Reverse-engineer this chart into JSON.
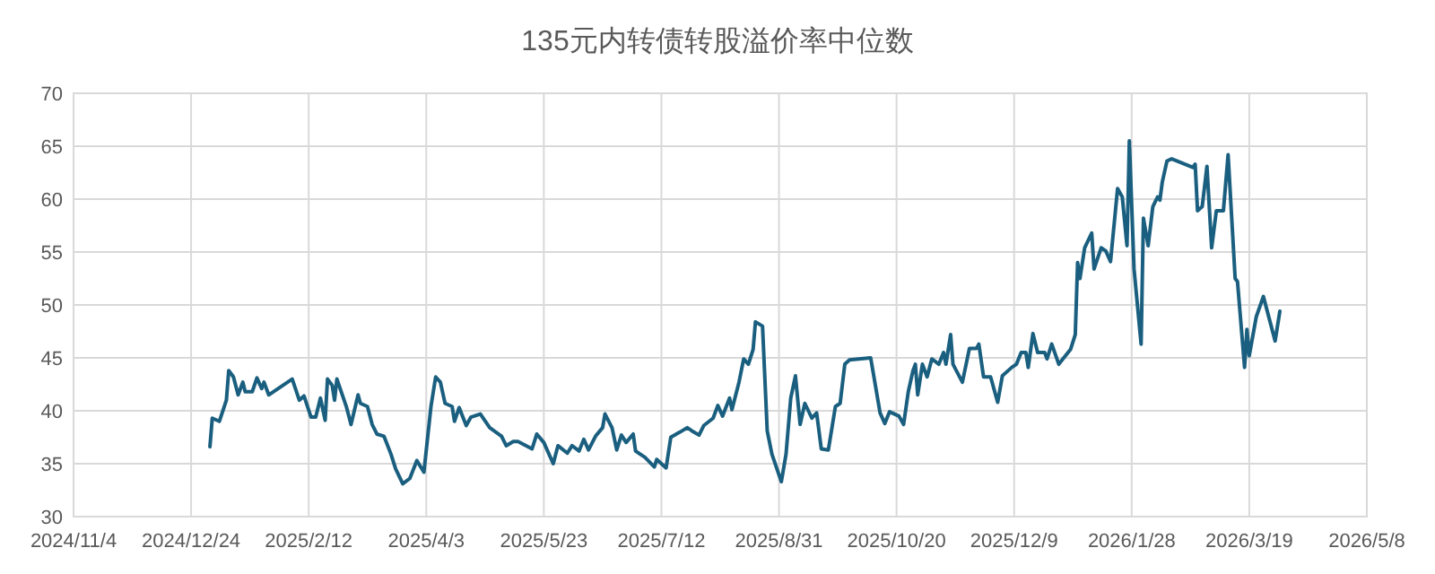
{
  "chart_data": {
    "type": "line",
    "title": "135元内转债转股溢价率中位数",
    "x": [
      "2025-01-01",
      "2025-01-02",
      "2025-01-05",
      "2025-01-08",
      "2025-01-09",
      "2025-01-11",
      "2025-01-13",
      "2025-01-15",
      "2025-01-16",
      "2025-01-19",
      "2025-01-21",
      "2025-01-23",
      "2025-01-24",
      "2025-01-26",
      "2025-02-05",
      "2025-02-08",
      "2025-02-10",
      "2025-02-13",
      "2025-02-15",
      "2025-02-17",
      "2025-02-19",
      "2025-02-20",
      "2025-02-22",
      "2025-02-23",
      "2025-02-24",
      "2025-02-28",
      "2025-03-02",
      "2025-03-05",
      "2025-03-06",
      "2025-03-09",
      "2025-03-11",
      "2025-03-13",
      "2025-03-16",
      "2025-03-19",
      "2025-03-21",
      "2025-03-24",
      "2025-03-27",
      "2025-03-30",
      "2025-04-02",
      "2025-04-05",
      "2025-04-07",
      "2025-04-09",
      "2025-04-11",
      "2025-04-14",
      "2025-04-15",
      "2025-04-17",
      "2025-04-20",
      "2025-04-22",
      "2025-04-26",
      "2025-04-30",
      "2025-05-05",
      "2025-05-07",
      "2025-05-10",
      "2025-05-12",
      "2025-05-18",
      "2025-05-20",
      "2025-05-23",
      "2025-05-27",
      "2025-05-29",
      "2025-06-02",
      "2025-06-04",
      "2025-06-07",
      "2025-06-09",
      "2025-06-11",
      "2025-06-14",
      "2025-06-17",
      "2025-06-18",
      "2025-06-21",
      "2025-06-23",
      "2025-06-25",
      "2025-06-27",
      "2025-06-30",
      "2025-07-01",
      "2025-07-05",
      "2025-07-09",
      "2025-07-10",
      "2025-07-14",
      "2025-07-16",
      "2025-07-20",
      "2025-07-23",
      "2025-07-25",
      "2025-07-28",
      "2025-07-30",
      "2025-08-03",
      "2025-08-05",
      "2025-08-07",
      "2025-08-10",
      "2025-08-11",
      "2025-08-14",
      "2025-08-16",
      "2025-08-18",
      "2025-08-20",
      "2025-08-21",
      "2025-08-24",
      "2025-08-26",
      "2025-08-28",
      "2025-09-01",
      "2025-09-03",
      "2025-09-05",
      "2025-09-07",
      "2025-09-09",
      "2025-09-11",
      "2025-09-14",
      "2025-09-16",
      "2025-09-18",
      "2025-09-21",
      "2025-09-24",
      "2025-09-26",
      "2025-09-28",
      "2025-09-30",
      "2025-10-09",
      "2025-10-13",
      "2025-10-15",
      "2025-10-17",
      "2025-10-21",
      "2025-10-23",
      "2025-10-25",
      "2025-10-27",
      "2025-10-28",
      "2025-10-29",
      "2025-10-31",
      "2025-11-02",
      "2025-11-04",
      "2025-11-07",
      "2025-11-09",
      "2025-11-10",
      "2025-11-12",
      "2025-11-13",
      "2025-11-17",
      "2025-11-20",
      "2025-11-23",
      "2025-11-24",
      "2025-11-26",
      "2025-11-29",
      "2025-12-02",
      "2025-12-04",
      "2025-12-08",
      "2025-12-10",
      "2025-12-12",
      "2025-12-14",
      "2025-12-15",
      "2025-12-17",
      "2025-12-19",
      "2025-12-22",
      "2025-12-23",
      "2025-12-25",
      "2025-12-28",
      "2026-01-02",
      "2026-01-04",
      "2026-01-05",
      "2026-01-06",
      "2026-01-08",
      "2026-01-11",
      "2026-01-12",
      "2026-01-15",
      "2026-01-17",
      "2026-01-19",
      "2026-01-22",
      "2026-01-24",
      "2026-01-26",
      "2026-01-27",
      "2026-01-29",
      "2026-02-01",
      "2026-02-02",
      "2026-02-04",
      "2026-02-06",
      "2026-02-08",
      "2026-02-09",
      "2026-02-10",
      "2026-02-12",
      "2026-02-14",
      "2026-02-23",
      "2026-02-24",
      "2026-02-25",
      "2026-02-27",
      "2026-03-01",
      "2026-03-03",
      "2026-03-05",
      "2026-03-08",
      "2026-03-10",
      "2026-03-13",
      "2026-03-14",
      "2026-03-17",
      "2026-03-18",
      "2026-03-19",
      "2026-03-22",
      "2026-03-25",
      "2026-03-30",
      "2026-04-01"
    ],
    "series": [
      {
        "color": "#1a5f7f",
        "values": [
          36.6,
          39.3,
          39.0,
          41.0,
          43.8,
          43.2,
          41.5,
          42.7,
          41.8,
          41.8,
          43.1,
          42.1,
          42.7,
          41.5,
          43.0,
          41.0,
          41.4,
          39.4,
          39.4,
          41.2,
          39.1,
          43.0,
          42.4,
          41.0,
          43.0,
          40.4,
          38.7,
          41.5,
          40.7,
          40.4,
          38.7,
          37.8,
          37.6,
          35.9,
          34.5,
          33.1,
          33.6,
          35.3,
          34.2,
          40.4,
          43.2,
          42.7,
          40.7,
          40.4,
          39.0,
          40.3,
          38.6,
          39.4,
          39.7,
          38.4,
          37.6,
          36.7,
          37.1,
          37.1,
          36.4,
          37.8,
          37.0,
          35.0,
          36.7,
          36.0,
          36.7,
          36.2,
          37.3,
          36.3,
          37.6,
          38.4,
          39.7,
          38.4,
          36.3,
          37.7,
          37.0,
          37.8,
          36.2,
          35.6,
          34.7,
          35.4,
          34.6,
          37.5,
          38.0,
          38.4,
          38.1,
          37.7,
          38.6,
          39.3,
          40.5,
          39.5,
          41.2,
          40.1,
          42.7,
          44.9,
          44.4,
          45.8,
          48.4,
          48.0,
          38.1,
          35.9,
          33.3,
          35.9,
          41.2,
          43.3,
          38.7,
          40.7,
          39.3,
          39.8,
          36.4,
          36.3,
          40.4,
          40.7,
          44.4,
          44.8,
          45.0,
          39.8,
          38.8,
          39.9,
          39.5,
          38.7,
          41.8,
          43.8,
          44.4,
          41.5,
          44.4,
          43.2,
          44.9,
          44.4,
          45.5,
          44.4,
          47.2,
          44.4,
          42.7,
          45.9,
          45.9,
          46.3,
          43.2,
          43.2,
          40.8,
          43.3,
          44.1,
          44.4,
          45.5,
          45.5,
          44.1,
          47.3,
          45.5,
          45.5,
          44.9,
          46.3,
          44.4,
          45.8,
          47.2,
          54.0,
          52.5,
          55.4,
          56.8,
          53.4,
          55.4,
          55.1,
          54.1,
          61.0,
          60.2,
          55.6,
          65.5,
          53.4,
          46.3,
          58.2,
          55.6,
          59.3,
          60.2,
          59.9,
          61.6,
          63.6,
          63.8,
          63.0,
          63.3,
          58.9,
          59.3,
          63.1,
          55.4,
          58.9,
          58.9,
          64.2,
          52.5,
          52.2,
          44.1,
          47.7,
          45.2,
          48.9,
          50.8,
          46.6,
          49.4
        ]
      }
    ],
    "xlim": [
      "2024-11-04",
      "2026-05-08"
    ],
    "xticks": [
      {
        "value": "2024-11-04",
        "label": "2024/11/4"
      },
      {
        "value": "2024-12-24",
        "label": "2024/12/24"
      },
      {
        "value": "2025-02-12",
        "label": "2025/2/12"
      },
      {
        "value": "2025-04-03",
        "label": "2025/4/3"
      },
      {
        "value": "2025-05-23",
        "label": "2025/5/23"
      },
      {
        "value": "2025-07-12",
        "label": "2025/7/12"
      },
      {
        "value": "2025-08-31",
        "label": "2025/8/31"
      },
      {
        "value": "2025-10-20",
        "label": "2025/10/20"
      },
      {
        "value": "2025-12-09",
        "label": "2025/12/9"
      },
      {
        "value": "2026-01-28",
        "label": "2026/1/28"
      },
      {
        "value": "2026-03-19",
        "label": "2026/3/19"
      },
      {
        "value": "2026-05-08",
        "label": "2026/5/8"
      }
    ],
    "ylim": [
      30,
      70
    ],
    "yticks": [
      30,
      35,
      40,
      45,
      50,
      55,
      60,
      65,
      70
    ],
    "grid": true
  }
}
